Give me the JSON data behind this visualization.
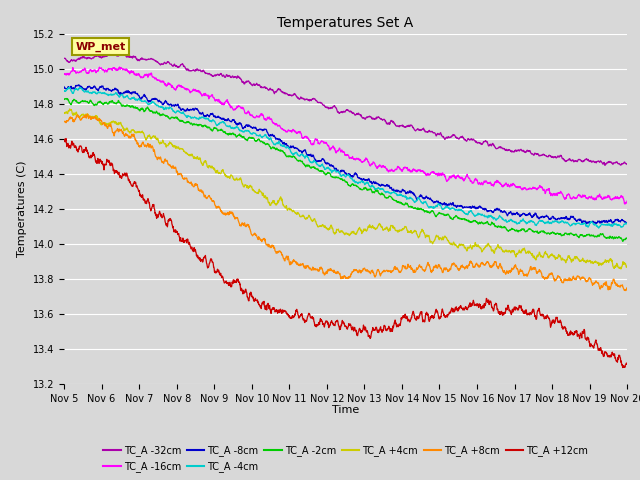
{
  "title": "Temperatures Set A",
  "xlabel": "Time",
  "ylabel": "Temperatures (C)",
  "ylim": [
    13.2,
    15.2
  ],
  "xlim": [
    0,
    15
  ],
  "x_tick_labels": [
    "Nov 5",
    "Nov 6",
    "Nov 7",
    "Nov 8",
    "Nov 9",
    "Nov 10",
    "Nov 11",
    "Nov 12",
    "Nov 13",
    "Nov 14",
    "Nov 15",
    "Nov 16",
    "Nov 17",
    "Nov 18",
    "Nov 19",
    "Nov 20"
  ],
  "background_color": "#d8d8d8",
  "axes_bg_color": "#d8d8d8",
  "annotation_text": "WP_met",
  "annotation_box_color": "#ffffa0",
  "annotation_border_color": "#999900",
  "series": [
    {
      "label": "TC_A -32cm",
      "color": "#aa00aa"
    },
    {
      "label": "TC_A -16cm",
      "color": "#ff00ff"
    },
    {
      "label": "TC_A -8cm",
      "color": "#0000cc"
    },
    {
      "label": "TC_A -4cm",
      "color": "#00cccc"
    },
    {
      "label": "TC_A -2cm",
      "color": "#00cc00"
    },
    {
      "label": "TC_A +4cm",
      "color": "#cccc00"
    },
    {
      "label": "TC_A +8cm",
      "color": "#ff8800"
    },
    {
      "label": "TC_A +12cm",
      "color": "#cc0000"
    }
  ]
}
